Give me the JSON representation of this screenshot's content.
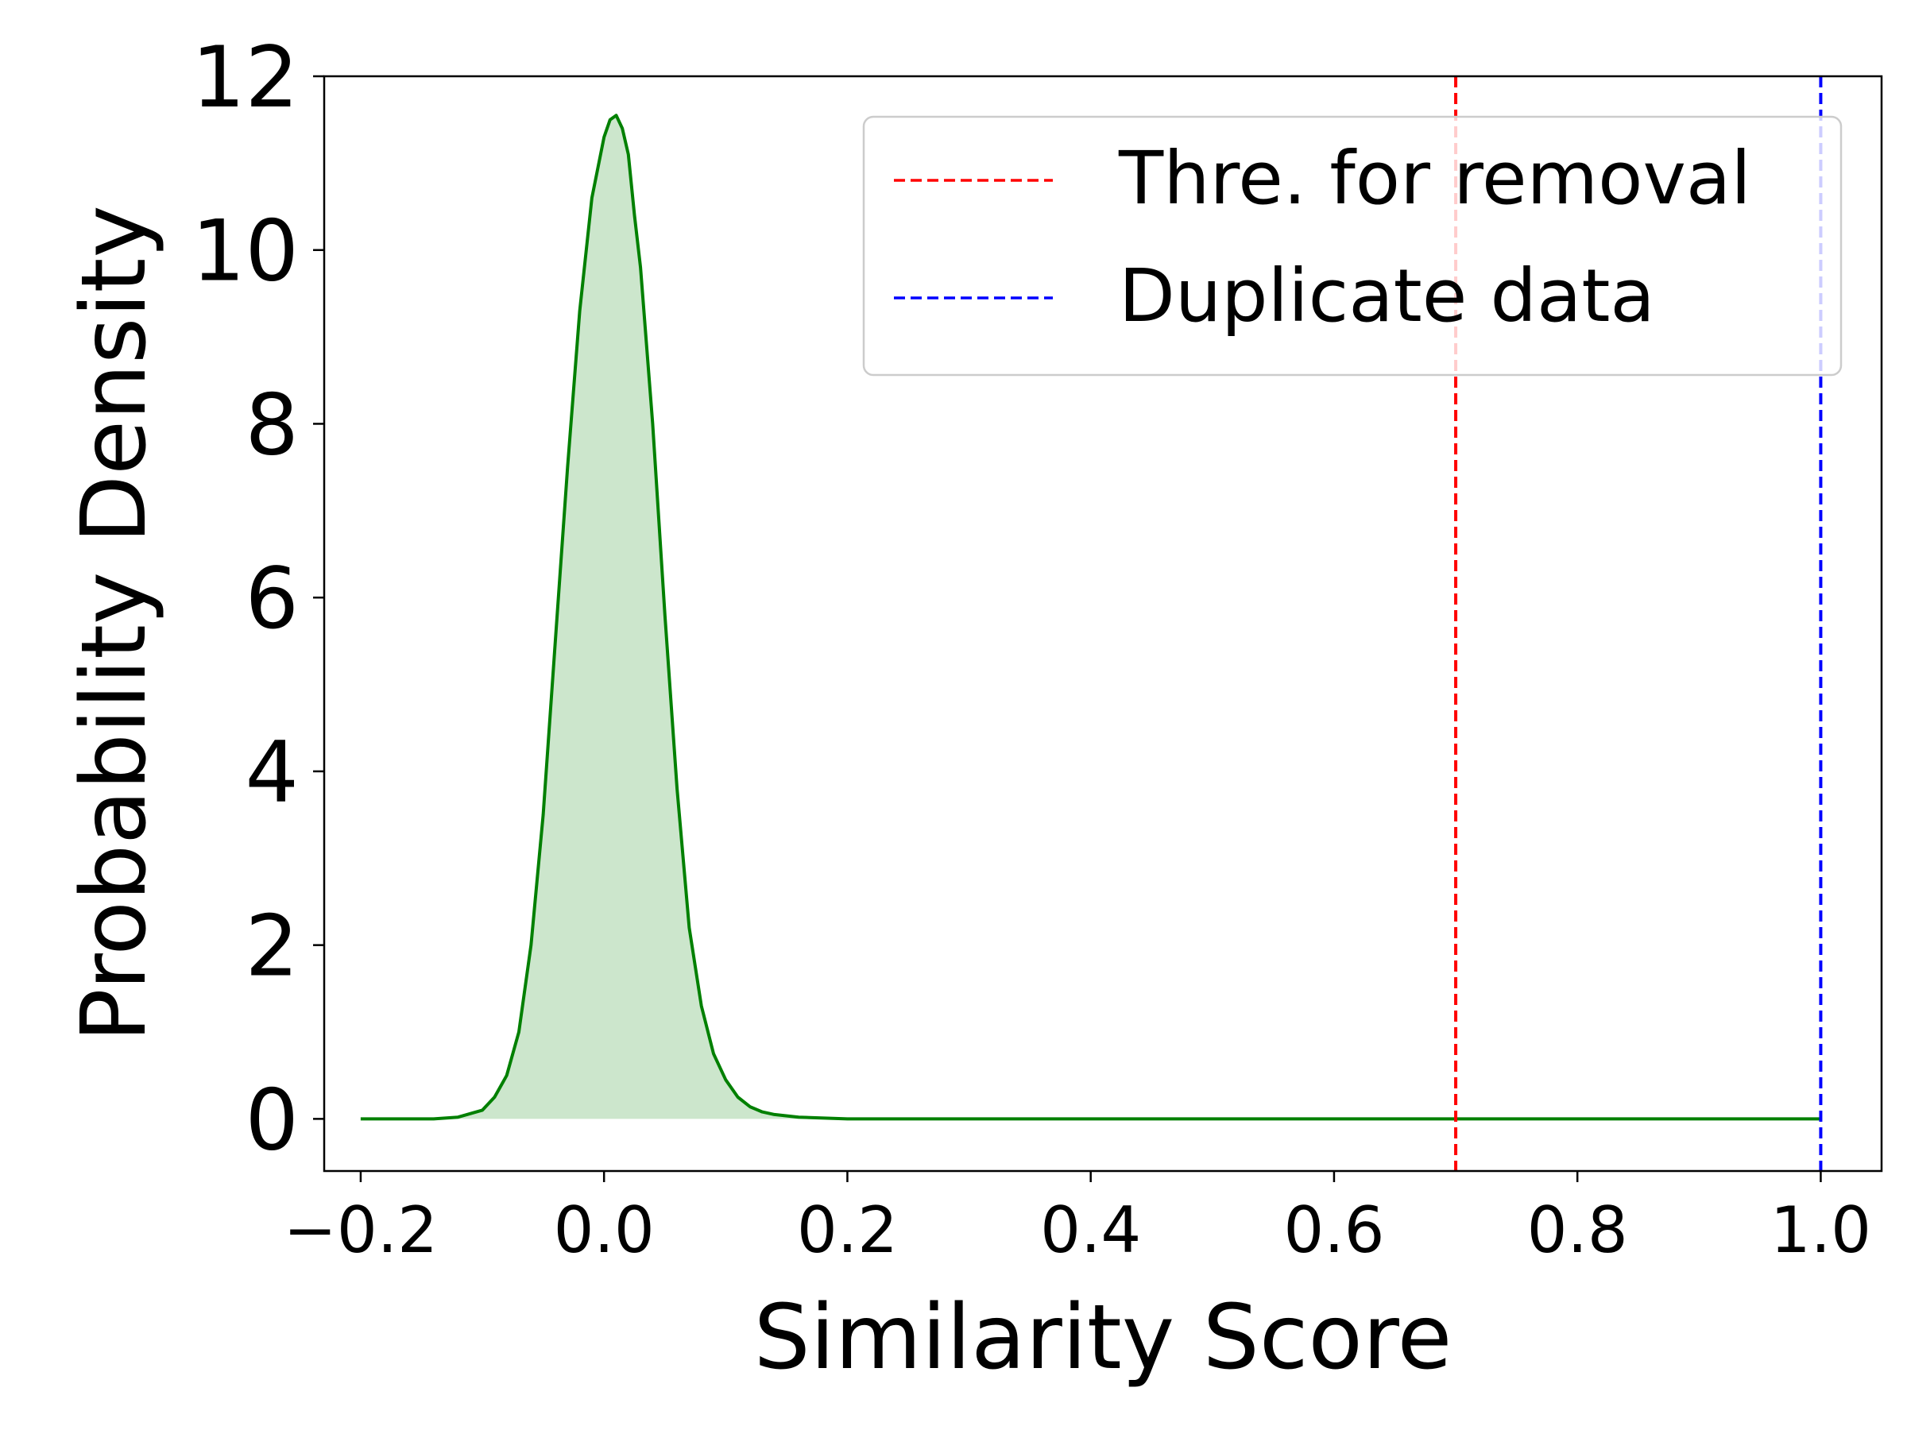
{
  "chart_data": {
    "type": "area",
    "xlabel": "Similarity Score",
    "ylabel": "Probability Density",
    "xlim": [
      -0.23,
      1.05
    ],
    "ylim": [
      -0.6,
      12
    ],
    "xticks": [
      -0.2,
      0.0,
      0.2,
      0.4,
      0.6,
      0.8,
      1.0
    ],
    "xtick_labels": [
      "−0.2",
      "0.0",
      "0.2",
      "0.4",
      "0.6",
      "0.8",
      "1.0"
    ],
    "yticks": [
      0,
      2,
      4,
      6,
      8,
      10,
      12
    ],
    "ytick_labels": [
      "0",
      "2",
      "4",
      "6",
      "8",
      "10",
      "12"
    ],
    "grid": false,
    "legend_position": "top-right",
    "series": [
      {
        "kind": "density",
        "color": "#008000",
        "fill_color": "#008000",
        "fill_opacity": 0.2,
        "x": [
          -0.2,
          -0.14,
          -0.12,
          -0.1,
          -0.09,
          -0.08,
          -0.07,
          -0.06,
          -0.05,
          -0.04,
          -0.03,
          -0.02,
          -0.01,
          0.0,
          0.005,
          0.01,
          0.015,
          0.02,
          0.025,
          0.03,
          0.04,
          0.05,
          0.06,
          0.07,
          0.08,
          0.09,
          0.1,
          0.11,
          0.12,
          0.13,
          0.14,
          0.16,
          0.2,
          0.3,
          1.0
        ],
        "y": [
          0.0,
          0.0,
          0.02,
          0.1,
          0.25,
          0.5,
          1.0,
          2.0,
          3.5,
          5.5,
          7.5,
          9.3,
          10.6,
          11.3,
          11.5,
          11.55,
          11.4,
          11.1,
          10.4,
          9.8,
          8.0,
          5.8,
          3.8,
          2.2,
          1.3,
          0.75,
          0.45,
          0.25,
          0.14,
          0.08,
          0.05,
          0.02,
          0.0,
          0.0,
          0.0
        ]
      },
      {
        "name": "Thre. for removal",
        "kind": "vline",
        "x": 0.7,
        "color": "#ff0000",
        "dashed": true
      },
      {
        "name": "Duplicate data",
        "kind": "vline",
        "x": 1.0,
        "color": "#0000ff",
        "dashed": true
      }
    ]
  }
}
